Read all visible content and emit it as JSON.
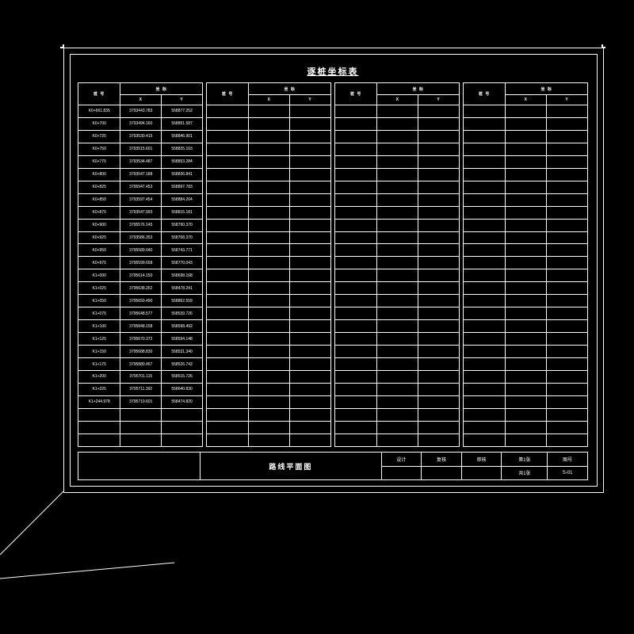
{
  "colors": {
    "background": "#000000",
    "line": "#ffffff",
    "text": "#ffffff"
  },
  "title": "逐桩坐标表",
  "header": {
    "point": "桩 号",
    "coord": "坐 标",
    "x": "X",
    "y": "Y"
  },
  "rows_per_group": 27,
  "group_count": 4,
  "groups": [
    [
      {
        "p": "K0+661.835",
        "x": "3793443.783",
        "y": "558877.252"
      },
      {
        "p": "K0+700",
        "x": "3793494.160",
        "y": "558891.587"
      },
      {
        "p": "K0+725",
        "x": "3793530.415",
        "y": "558846.901"
      },
      {
        "p": "K0+750",
        "x": "3793515.601",
        "y": "558825.163"
      },
      {
        "p": "K0+775",
        "x": "3793534.487",
        "y": "558853.284"
      },
      {
        "p": "K0+800",
        "x": "3793547.188",
        "y": "558836.841"
      },
      {
        "p": "K0+825",
        "x": "3795947.453",
        "y": "558897.783"
      },
      {
        "p": "K0+850",
        "x": "3793597.454",
        "y": "558884.264"
      },
      {
        "p": "K0+875",
        "x": "3793547.993",
        "y": "558815.181"
      },
      {
        "p": "K0+900",
        "x": "3795576.145",
        "y": "558790.370"
      },
      {
        "p": "K0+925",
        "x": "3793586.353",
        "y": "558768.370"
      },
      {
        "p": "K0+950",
        "x": "3795589.040",
        "y": "558743.771"
      },
      {
        "p": "K0+975",
        "x": "3795599.658",
        "y": "558770.043"
      },
      {
        "p": "K1+000",
        "x": "3795614.150",
        "y": "558698.168"
      },
      {
        "p": "K1+025",
        "x": "3795638.252",
        "y": "558478.241"
      },
      {
        "p": "K1+050",
        "x": "3795659.490",
        "y": "558862.559"
      },
      {
        "p": "K1+075",
        "x": "3795648.577",
        "y": "558539.726"
      },
      {
        "p": "K1+100",
        "x": "3795848.158",
        "y": "558598.492"
      },
      {
        "p": "K1+125",
        "x": "3795670.372",
        "y": "558594.148"
      },
      {
        "p": "K1+150",
        "x": "3795688.830",
        "y": "558531.340"
      },
      {
        "p": "K1+175",
        "x": "3795880.457",
        "y": "558526.742"
      },
      {
        "p": "K1+200",
        "x": "3795701.115",
        "y": "558515.726"
      },
      {
        "p": "K1+225",
        "x": "3795711.392",
        "y": "558640.830"
      },
      {
        "p": "K1+244.978",
        "x": "3795719.601",
        "y": "558474.820"
      }
    ],
    [],
    [],
    []
  ],
  "title_block": {
    "drawing_title": "路线平面图",
    "fields": {
      "design": "设计",
      "check": "复核",
      "audit": "审核",
      "sheet_a": "第1张",
      "sheet_b": "共1张",
      "drawing_no_label": "图号",
      "drawing_no": "S-01"
    }
  }
}
